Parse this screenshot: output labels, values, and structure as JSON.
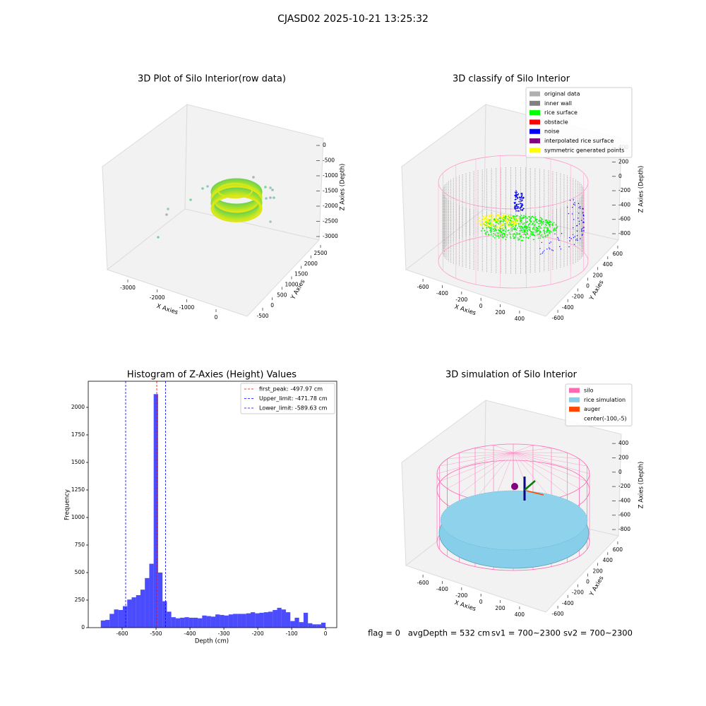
{
  "title": "CJASD02 2025-10-21 13:25:32",
  "chart_data": [
    {
      "type": "scatter3d",
      "title": "3D Plot of Silo Interior(row data)",
      "xlabel": "X Axies",
      "ylabel": "Y Axies",
      "zlabel": "Z Axies (Depth)",
      "xlim": [
        -3700,
        700
      ],
      "xticks": [
        -3000,
        -2000,
        -1000,
        0
      ],
      "ylim": [
        -800,
        2800
      ],
      "yticks": [
        -500,
        0,
        500,
        1000,
        1500,
        2000,
        2500
      ],
      "zlim": [
        -3300,
        300
      ],
      "zticks": [
        0,
        -500,
        -1000,
        -1500,
        -2000,
        -2500,
        -3000
      ]
    },
    {
      "type": "scatter3d",
      "title": "3D classify of Silo Interior",
      "xlabel": "X Axies",
      "ylabel": "Y Axies",
      "zlabel": "Z Axies (Depth)",
      "xlim": [
        -700,
        500
      ],
      "xticks": [
        -600,
        -400,
        -200,
        0,
        200,
        400
      ],
      "ylim": [
        -700,
        700
      ],
      "yticks": [
        -600,
        -400,
        -200,
        0,
        200,
        400,
        600
      ],
      "zlim": [
        -900,
        500
      ],
      "zticks": [
        400,
        200,
        0,
        -200,
        -400,
        -600,
        -800
      ],
      "legend": "upper right",
      "series": [
        {
          "name": "original data",
          "color": "#b0b0b0"
        },
        {
          "name": "inner wall",
          "color": "#808080"
        },
        {
          "name": "rice surface",
          "color": "#00ff00"
        },
        {
          "name": "obstacle",
          "color": "#ff0000"
        },
        {
          "name": "noise",
          "color": "#0000ff"
        },
        {
          "name": "interpolated rice surface",
          "color": "#800080"
        },
        {
          "name": "symmetric generated points",
          "color": "#ffff00"
        }
      ]
    },
    {
      "type": "histogram",
      "title": "Histogram of Z-Axies (Height) Values",
      "xlabel": "Depth (cm)",
      "ylabel": "Frequency",
      "color": "#0000ff",
      "alpha": 0.7,
      "bins": [
        -663,
        -650,
        -637,
        -624,
        -611,
        -598,
        -585,
        -572,
        -559,
        -546,
        -533,
        -520,
        -507,
        -494,
        -481,
        -468,
        -455,
        -442,
        -429,
        -416,
        -403,
        -390,
        -377,
        -364,
        -351,
        -338,
        -325,
        -312,
        -299,
        -286,
        -273,
        -260,
        -247,
        -234,
        -221,
        -208,
        -195,
        -182,
        -169,
        -156,
        -143,
        -130,
        -117,
        -104,
        -91,
        -78,
        -65,
        -52,
        -39,
        -26,
        -13,
        0
      ],
      "values": [
        65,
        70,
        125,
        165,
        160,
        195,
        255,
        275,
        295,
        345,
        450,
        580,
        2120,
        500,
        240,
        145,
        95,
        85,
        90,
        95,
        90,
        90,
        85,
        110,
        105,
        100,
        120,
        115,
        110,
        120,
        125,
        125,
        125,
        130,
        140,
        130,
        135,
        140,
        145,
        160,
        180,
        165,
        140,
        60,
        90,
        50,
        135,
        40,
        30,
        30,
        45
      ],
      "xlim": [
        -700,
        33
      ],
      "xticks": [
        -600,
        -500,
        -400,
        -300,
        -200,
        -100,
        0
      ],
      "ylim": [
        0,
        2237
      ],
      "yticks": [
        0,
        250,
        500,
        750,
        1000,
        1250,
        1500,
        1750,
        2000
      ],
      "legend": "upper right",
      "lines": [
        {
          "name": "first_peak: -497.97 cm",
          "value": -497.97,
          "color": "#ff0000"
        },
        {
          "name": "Upper_limit: -471.78 cm",
          "value": -471.78,
          "color": "#0000ff"
        },
        {
          "name": "Lower_limit: -589.63 cm",
          "value": -589.63,
          "color": "#0000ff"
        }
      ]
    },
    {
      "type": "scatter3d",
      "title": "3D simulation of Silo Interior",
      "xlabel": "X Axies",
      "ylabel": "Y Axies",
      "zlabel": "Z Axies (Depth)",
      "xlim": [
        -700,
        500
      ],
      "xticks": [
        -600,
        -400,
        -200,
        0,
        200,
        400
      ],
      "ylim": [
        -700,
        700
      ],
      "yticks": [
        -600,
        -400,
        -200,
        0,
        200,
        400,
        600
      ],
      "zlim": [
        -900,
        500
      ],
      "zticks": [
        400,
        200,
        0,
        -200,
        -400,
        -600,
        -800
      ],
      "legend": "upper right",
      "series": [
        {
          "name": "silo",
          "color": "#ff69b4"
        },
        {
          "name": "rice simulation",
          "color": "#87ceeb"
        },
        {
          "name": "auger",
          "color": "#ff4500"
        },
        {
          "name": "center(-100,-5)"
        }
      ]
    }
  ],
  "footer": [
    "flag = 0",
    "avgDepth = 532 cm",
    "sv1 = 700~2300",
    "sv2 = 700~2300"
  ]
}
